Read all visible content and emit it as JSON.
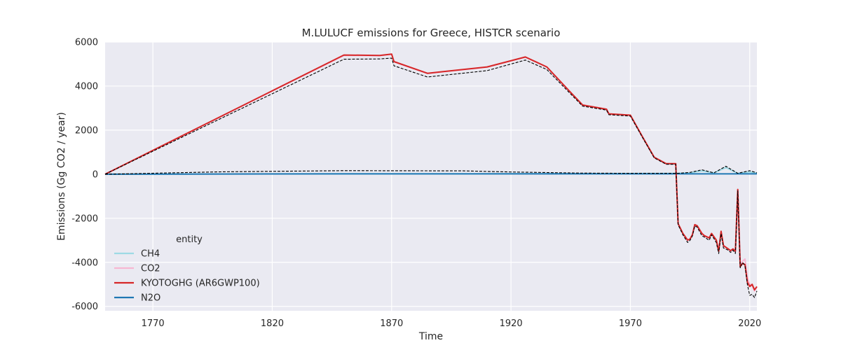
{
  "chart_data": {
    "type": "line",
    "title": "M.LULUCF emissions for Greece, HISTCR scenario",
    "xlabel": "Time",
    "ylabel": "Emissions (Gg CO2 / year)",
    "xlim": [
      1750,
      2023
    ],
    "ylim": [
      -6200,
      6000
    ],
    "xticks": [
      1770,
      1820,
      1870,
      1920,
      1970,
      2020
    ],
    "yticks": [
      -6000,
      -4000,
      -2000,
      0,
      2000,
      4000,
      6000
    ],
    "grid": true,
    "legend": {
      "title": "entity",
      "placement": "lower-left",
      "entries": [
        "CH4",
        "CO2",
        "KYOTOGHG (AR6GWP100)",
        "N2O"
      ]
    },
    "series": [
      {
        "name": "CH4",
        "color": "#9edae5",
        "x": [
          1750,
          1850,
          1900,
          1970,
          1990,
          1995,
          2000,
          2005,
          2010,
          2015,
          2020,
          2023
        ],
        "y": [
          0,
          20,
          20,
          30,
          40,
          60,
          150,
          60,
          300,
          40,
          100,
          50
        ]
      },
      {
        "name": "CO2",
        "color": "#f7b6d2",
        "x": [
          1750,
          1850,
          1865,
          1870,
          1871,
          1885,
          1910,
          1926,
          1935,
          1945,
          1950,
          1960,
          1961,
          1970,
          1975,
          1980,
          1985,
          1989,
          1990,
          1992,
          1994,
          1995,
          1996,
          1997,
          1998,
          2000,
          2001,
          2003,
          2004,
          2006,
          2007,
          2008,
          2009,
          2011,
          2012,
          2013,
          2014,
          2015,
          2016,
          2017,
          2018,
          2019,
          2020,
          2021,
          2022,
          2023
        ],
        "y": [
          0,
          5390,
          5380,
          5440,
          5100,
          4570,
          4860,
          5310,
          4860,
          3700,
          3130,
          2940,
          2730,
          2670,
          1700,
          760,
          470,
          470,
          -2250,
          -2700,
          -3000,
          -2950,
          -2750,
          -2300,
          -2350,
          -2700,
          -2800,
          -2900,
          -2700,
          -3000,
          -3500,
          -2600,
          -3250,
          -3400,
          -3480,
          -3400,
          -3500,
          -700,
          -4100,
          -3950,
          -3850,
          -4700,
          -5000,
          -5050,
          -5300,
          -5100
        ]
      },
      {
        "name": "KYOTOGHG (AR6GWP100)",
        "color": "#d62728",
        "x": [
          1750,
          1850,
          1865,
          1870,
          1871,
          1885,
          1910,
          1926,
          1935,
          1945,
          1950,
          1960,
          1961,
          1970,
          1975,
          1980,
          1985,
          1989,
          1990,
          1992,
          1994,
          1995,
          1996,
          1997,
          1998,
          2000,
          2001,
          2003,
          2004,
          2006,
          2007,
          2008,
          2009,
          2011,
          2012,
          2013,
          2014,
          2015,
          2016,
          2017,
          2018,
          2019,
          2020,
          2021,
          2022,
          2023
        ],
        "y": [
          0,
          5410,
          5390,
          5450,
          5110,
          4580,
          4870,
          5320,
          4870,
          3710,
          3140,
          2950,
          2740,
          2680,
          1710,
          770,
          480,
          480,
          -2240,
          -2690,
          -2990,
          -2940,
          -2740,
          -2290,
          -2340,
          -2690,
          -2790,
          -2890,
          -2690,
          -2990,
          -3490,
          -2590,
          -3240,
          -3390,
          -3470,
          -3390,
          -3490,
          -690,
          -4200,
          -4050,
          -4100,
          -4900,
          -5100,
          -5000,
          -5250,
          -5100
        ]
      },
      {
        "name": "N2O",
        "color": "#1f77b4",
        "x": [
          1750,
          1850,
          1900,
          1970,
          2023
        ],
        "y": [
          0,
          15,
          15,
          15,
          15
        ]
      },
      {
        "name": "",
        "color": "#000000",
        "style": "dashed",
        "x": [
          1750,
          1850,
          1865,
          1870,
          1871,
          1885,
          1910,
          1926,
          1935,
          1945,
          1950,
          1960,
          1961,
          1970,
          1975,
          1980,
          1985,
          1989,
          1990,
          1992,
          1994,
          1995,
          1996,
          1997,
          1998,
          2000,
          2001,
          2003,
          2004,
          2006,
          2007,
          2008,
          2009,
          2011,
          2012,
          2013,
          2014,
          2015,
          2016,
          2017,
          2018,
          2019,
          2020,
          2021,
          2022,
          2023
        ],
        "y": [
          0,
          5220,
          5230,
          5270,
          4920,
          4410,
          4700,
          5180,
          4750,
          3640,
          3090,
          2910,
          2700,
          2640,
          1680,
          740,
          450,
          450,
          -2300,
          -2750,
          -3100,
          -3000,
          -2800,
          -2350,
          -2400,
          -2800,
          -2850,
          -3000,
          -2750,
          -3100,
          -3600,
          -2700,
          -3350,
          -3450,
          -3550,
          -3450,
          -3600,
          -750,
          -4250,
          -4000,
          -4150,
          -5000,
          -5500,
          -5450,
          -5600,
          -5300
        ]
      },
      {
        "name": "",
        "color": "#000000",
        "style": "dashed",
        "x": [
          1750,
          1800,
          1850,
          1900,
          1920,
          1950,
          1970,
          1990,
          1995,
          2000,
          2005,
          2010,
          2015,
          2020,
          2023
        ],
        "y": [
          0,
          110,
          160,
          150,
          100,
          50,
          40,
          40,
          80,
          200,
          60,
          360,
          40,
          160,
          60
        ]
      }
    ]
  }
}
